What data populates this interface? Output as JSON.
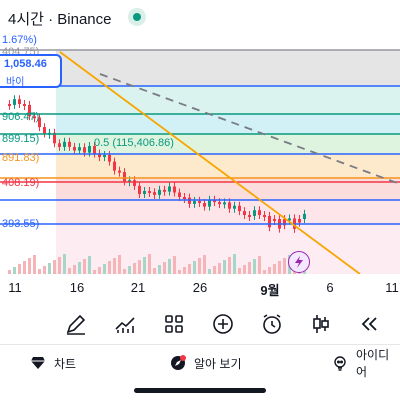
{
  "header": {
    "title": "4시간 · Binance"
  },
  "chart": {
    "price_labels": [
      {
        "text": "1.67%)",
        "color": "#2962ff"
      },
      {
        "text": "404.75)",
        "color": "#9598a1"
      },
      {
        "text": "906.47)",
        "color": "#089981"
      },
      {
        "text": "899.15)",
        "color": "#089981"
      },
      {
        "text": "891.83)",
        "color": "#f7931a"
      },
      {
        "text": "408.19)",
        "color": "#f23645"
      },
      {
        "text": "393.55)",
        "color": "#2962ff"
      }
    ],
    "current_price": "1,058.46",
    "current_price_sub": "바이",
    "fib_label": "0.5 (115,406.86)"
  },
  "axis": {
    "labels": [
      "11",
      "16",
      "21",
      "26",
      "9월",
      "6",
      "11"
    ]
  },
  "toolbar": {
    "tools": [
      "draw-icon",
      "indicators-icon",
      "layouts-icon",
      "add-icon",
      "alarm-icon",
      "candles-icon",
      "replay-icon"
    ]
  },
  "tabs": {
    "chart": "차트",
    "explore": "알아 보기",
    "ideas": "아이디어"
  }
}
